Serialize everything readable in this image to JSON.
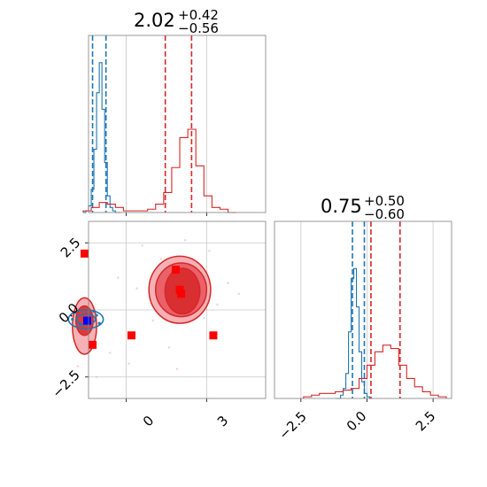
{
  "chart_data": [
    {
      "panel": "diag-1",
      "type": "histogram",
      "title_main": "2.02",
      "title_sup": "+0.42",
      "title_sub": "−0.56",
      "xlim": [
        -1.4,
        5.2
      ],
      "grid_x": [
        0,
        3
      ],
      "series": [
        {
          "color": "#1f77b4",
          "bins": [
            -1.6,
            -1.5,
            -1.4,
            -1.3,
            -1.2,
            -1.1,
            -1.0,
            -0.9,
            -0.8,
            -0.7,
            -0.6,
            -0.5,
            -0.4,
            -0.3,
            -0.2
          ],
          "counts": [
            0.0,
            0.01,
            0.04,
            0.14,
            0.38,
            0.72,
            0.9,
            0.62,
            0.3,
            0.1,
            0.03,
            0.01,
            0.0,
            0.0
          ],
          "quantile_lines": [
            -1.25,
            -0.75
          ]
        },
        {
          "color": "#d62728",
          "bins": [
            -1.6,
            -1.3,
            -1.0,
            -0.7,
            -0.4,
            -0.1,
            0.2,
            0.5,
            0.8,
            1.1,
            1.4,
            1.7,
            2.0,
            2.3,
            2.6,
            2.9,
            3.2,
            3.5,
            3.8,
            4.1
          ],
          "counts": [
            0.01,
            0.03,
            0.06,
            0.05,
            0.03,
            0.01,
            0.01,
            0.01,
            0.02,
            0.05,
            0.12,
            0.27,
            0.45,
            0.5,
            0.28,
            0.1,
            0.03,
            0.02,
            0.0
          ],
          "quantile_lines": [
            1.46,
            2.44
          ]
        }
      ]
    },
    {
      "panel": "joint",
      "type": "contour",
      "xlim": [
        -1.4,
        5.2
      ],
      "ylim": [
        -3.3,
        3.3
      ],
      "grid_x": [
        0,
        3
      ],
      "grid_y": [
        2.5,
        0.0,
        -2.5
      ],
      "xticks": [
        "0",
        "3"
      ],
      "yticks": [
        "2.5",
        "0.0",
        "−2.5"
      ],
      "red_contours": [
        {
          "cx": 2.0,
          "cy": 0.75,
          "rx": 1.15,
          "ry": 1.25,
          "level": "outer"
        },
        {
          "cx": 2.05,
          "cy": 0.75,
          "rx": 0.95,
          "ry": 1.0,
          "level": "middle"
        },
        {
          "cx": 2.1,
          "cy": 0.7,
          "rx": 0.65,
          "ry": 0.85,
          "level": "inner"
        },
        {
          "cx": -1.55,
          "cy": -0.6,
          "rx": 0.45,
          "ry": 1.05,
          "level": "outer"
        },
        {
          "cx": -1.55,
          "cy": -0.4,
          "rx": 0.32,
          "ry": 0.55,
          "level": "inner"
        }
      ],
      "blue_contours": [
        {
          "cx": -1.5,
          "cy": -0.35,
          "rx": 0.65,
          "ry": 0.35
        },
        {
          "cx": -1.5,
          "cy": -0.35,
          "rx": 0.35,
          "ry": 0.2
        }
      ],
      "red_markers": [
        [
          -1.55,
          2.1
        ],
        [
          -1.25,
          -1.3
        ],
        [
          0.2,
          -0.95
        ],
        [
          3.25,
          -0.95
        ],
        [
          1.85,
          1.5
        ],
        [
          2.0,
          0.75
        ],
        [
          2.05,
          0.6
        ]
      ],
      "blue_marker": [
        -1.45,
        -0.4
      ]
    },
    {
      "panel": "diag-2",
      "type": "histogram",
      "title_main": "0.75",
      "title_sup": "+0.50",
      "title_sub": "−0.60",
      "xlim": [
        -3.5,
        3.2
      ],
      "grid_x": [
        -2.5,
        0.0,
        2.5
      ],
      "xticks": [
        "−2.5",
        "0.0",
        "2.5"
      ],
      "series": [
        {
          "color": "#1f77b4",
          "bins": [
            -1.2,
            -1.0,
            -0.9,
            -0.8,
            -0.7,
            -0.6,
            -0.5,
            -0.4,
            -0.3,
            -0.2,
            -0.1,
            0.0,
            0.1,
            0.2
          ],
          "counts": [
            0.0,
            0.02,
            0.06,
            0.15,
            0.4,
            0.72,
            0.78,
            0.55,
            0.28,
            0.1,
            0.03,
            0.01,
            0.0
          ],
          "quantile_lines": [
            -0.55,
            -0.1
          ]
        },
        {
          "color": "#d62728",
          "bins": [
            -2.4,
            -2.1,
            -1.8,
            -1.5,
            -1.2,
            -0.9,
            -0.6,
            -0.3,
            0.0,
            0.3,
            0.6,
            0.9,
            1.2,
            1.5,
            1.8,
            2.1,
            2.4,
            2.7,
            3.0
          ],
          "counts": [
            0.01,
            0.02,
            0.03,
            0.03,
            0.04,
            0.05,
            0.06,
            0.12,
            0.2,
            0.28,
            0.32,
            0.3,
            0.2,
            0.12,
            0.07,
            0.04,
            0.02,
            0.01
          ],
          "quantile_lines": [
            0.15,
            1.25
          ]
        }
      ]
    }
  ]
}
